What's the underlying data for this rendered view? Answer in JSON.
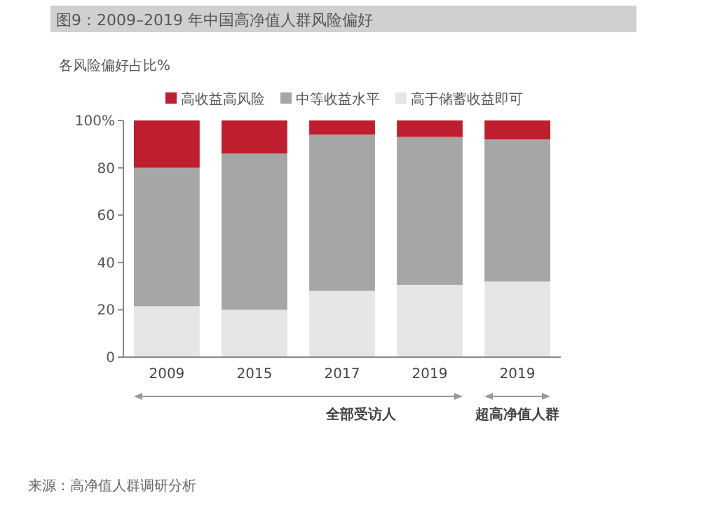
{
  "chart_data": {
    "type": "bar",
    "stacked": true,
    "title": "图9：2009–2019 年中国高净值人群风险偏好",
    "ylabel": "各风险偏好占比%",
    "categories": [
      "2009",
      "2015",
      "2017",
      "2019",
      "2019"
    ],
    "series": [
      {
        "name": "高于储蓄收益即可",
        "color": "#e6e6e6",
        "values": [
          21.5,
          20,
          28,
          30.5,
          32
        ]
      },
      {
        "name": "中等收益水平",
        "color": "#a6a6a6",
        "values": [
          58.5,
          66,
          66,
          62.5,
          60
        ]
      },
      {
        "name": "高收益高风险",
        "color": "#be1e2d",
        "values": [
          20,
          14,
          6,
          7,
          8
        ]
      }
    ],
    "ylim": [
      0,
      100
    ],
    "yticks": [
      0,
      20,
      40,
      60,
      80,
      {
        "value": 100,
        "label": "100%"
      }
    ],
    "grid": false,
    "legend": "top",
    "annotations": [
      "全部受访人",
      "超高净值人群",
      "来源：高净值人群调研分析"
    ]
  }
}
